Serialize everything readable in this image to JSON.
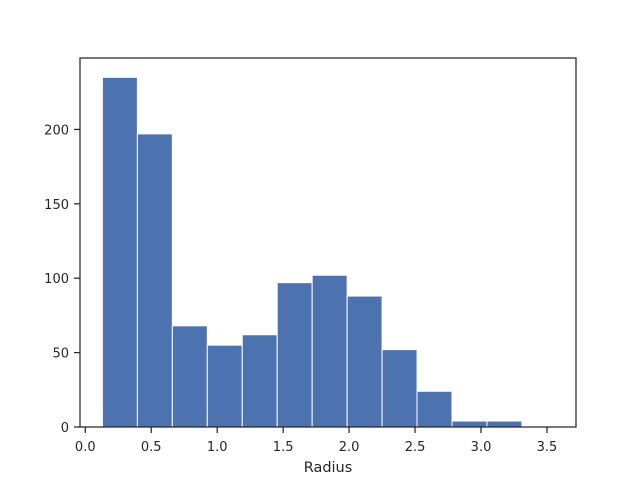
{
  "chart_data": {
    "type": "bar",
    "title": "",
    "xlabel": "Radius",
    "ylabel": "",
    "xlim": [
      -0.04,
      3.72
    ],
    "ylim": [
      0,
      248
    ],
    "grid": false,
    "bar_color": "#4c72b0",
    "bin_edges": [
      0.13,
      0.395,
      0.66,
      0.925,
      1.19,
      1.455,
      1.72,
      1.985,
      2.25,
      2.515,
      2.78,
      3.045,
      3.31,
      3.575
    ],
    "values": [
      235,
      197,
      68,
      55,
      62,
      97,
      102,
      88,
      52,
      24,
      4,
      4,
      0
    ],
    "x_ticks": [
      0.0,
      0.5,
      1.0,
      1.5,
      2.0,
      2.5,
      3.0,
      3.5
    ],
    "x_tick_labels": [
      "0.0",
      "0.5",
      "1.0",
      "1.5",
      "2.0",
      "2.5",
      "3.0",
      "3.5"
    ],
    "y_ticks": [
      0,
      50,
      100,
      150,
      200
    ],
    "y_tick_labels": [
      "0",
      "50",
      "100",
      "150",
      "200"
    ]
  }
}
